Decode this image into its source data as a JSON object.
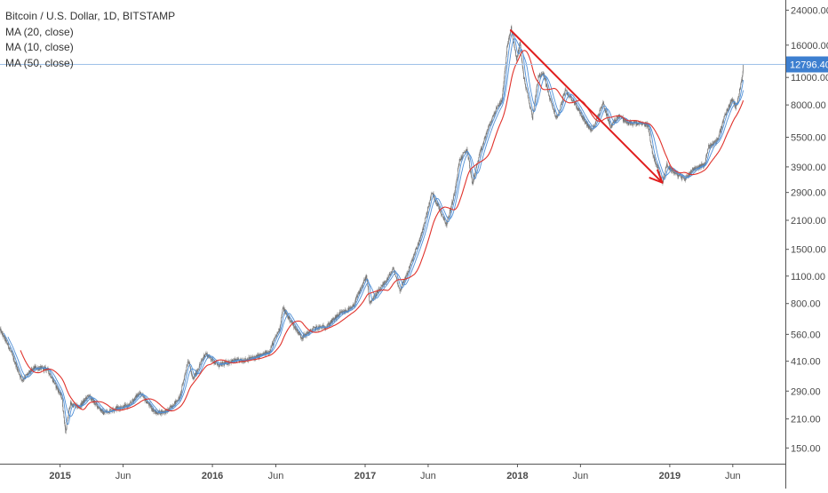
{
  "legend": {
    "symbol": "Bitcoin / U.S. Dollar, 1D, BITSTAMP",
    "ma20": "MA (20, close)",
    "ma10": "MA (10, close)",
    "ma50": "MA (50, close)"
  },
  "current_price_label": "12796.40",
  "colors": {
    "candles": "#8a8a8a",
    "ma_blue": "#4f8fd6",
    "ma_red": "#e0322b",
    "arrow": "#e01e1e",
    "price_line": "#9fc1e8",
    "price_tag": "#3d7fd0"
  },
  "chart_data": {
    "type": "line",
    "y_scale": "log",
    "ylim": [
      125,
      27000
    ],
    "grid": false,
    "y_ticks": [
      24000,
      16000,
      11000,
      8000,
      5500,
      3900,
      2900,
      2100,
      1500,
      1100,
      800,
      560,
      410,
      290,
      210,
      150
    ],
    "y_tick_labels": [
      "24000.00",
      "16000.00",
      "11000.00",
      "8000.00",
      "5500.00",
      "3900.00",
      "2900.00",
      "2100.00",
      "1500.00",
      "1100.00",
      "800.00",
      "560.00",
      "410.00",
      "290.00",
      "210.00",
      "150.00"
    ],
    "x_ticks": [
      "2015",
      "Jun",
      "2016",
      "Jun",
      "2017",
      "Jun",
      "2018",
      "Jun",
      "2019",
      "Jun"
    ],
    "x_tick_dates": [
      "2015-01-01",
      "2015-06-01",
      "2016-01-01",
      "2016-06-01",
      "2017-01-01",
      "2017-06-01",
      "2018-01-01",
      "2018-06-01",
      "2019-01-01",
      "2019-06-01"
    ],
    "x_range": [
      "2014-08-10",
      "2019-10-05"
    ],
    "current_price": 12796.4,
    "price_points": [
      [
        "2014-08-10",
        590
      ],
      [
        "2014-09-01",
        480
      ],
      [
        "2014-10-01",
        330
      ],
      [
        "2014-11-01",
        380
      ],
      [
        "2014-12-01",
        375
      ],
      [
        "2015-01-05",
        270
      ],
      [
        "2015-01-14",
        180
      ],
      [
        "2015-01-25",
        250
      ],
      [
        "2015-02-15",
        240
      ],
      [
        "2015-03-10",
        275
      ],
      [
        "2015-04-15",
        225
      ],
      [
        "2015-05-15",
        238
      ],
      [
        "2015-06-15",
        245
      ],
      [
        "2015-07-10",
        285
      ],
      [
        "2015-08-18",
        225
      ],
      [
        "2015-09-15",
        230
      ],
      [
        "2015-10-15",
        270
      ],
      [
        "2015-11-04",
        420
      ],
      [
        "2015-11-15",
        330
      ],
      [
        "2015-12-15",
        450
      ],
      [
        "2016-01-15",
        390
      ],
      [
        "2016-02-15",
        410
      ],
      [
        "2016-03-15",
        415
      ],
      [
        "2016-04-15",
        430
      ],
      [
        "2016-05-15",
        455
      ],
      [
        "2016-06-10",
        600
      ],
      [
        "2016-06-18",
        760
      ],
      [
        "2016-07-01",
        680
      ],
      [
        "2016-08-02",
        540
      ],
      [
        "2016-09-01",
        600
      ],
      [
        "2016-10-01",
        615
      ],
      [
        "2016-11-01",
        710
      ],
      [
        "2016-12-01",
        760
      ],
      [
        "2017-01-04",
        1100
      ],
      [
        "2017-01-12",
        810
      ],
      [
        "2017-02-15",
        1000
      ],
      [
        "2017-03-10",
        1200
      ],
      [
        "2017-03-25",
        930
      ],
      [
        "2017-04-15",
        1180
      ],
      [
        "2017-05-15",
        1750
      ],
      [
        "2017-06-10",
        2900
      ],
      [
        "2017-07-15",
        2000
      ],
      [
        "2017-08-01",
        2750
      ],
      [
        "2017-08-15",
        4200
      ],
      [
        "2017-09-02",
        4800
      ],
      [
        "2017-09-15",
        3200
      ],
      [
        "2017-10-01",
        4400
      ],
      [
        "2017-10-20",
        5900
      ],
      [
        "2017-11-08",
        7400
      ],
      [
        "2017-11-25",
        8500
      ],
      [
        "2017-12-07",
        15500
      ],
      [
        "2017-12-17",
        19500
      ],
      [
        "2017-12-30",
        13500
      ],
      [
        "2018-01-07",
        16500
      ],
      [
        "2018-01-16",
        11000
      ],
      [
        "2018-02-06",
        6900
      ],
      [
        "2018-02-20",
        11200
      ],
      [
        "2018-03-05",
        11400
      ],
      [
        "2018-03-20",
        8500
      ],
      [
        "2018-04-05",
        6800
      ],
      [
        "2018-04-25",
        9400
      ],
      [
        "2018-05-15",
        8400
      ],
      [
        "2018-06-10",
        6700
      ],
      [
        "2018-06-28",
        5900
      ],
      [
        "2018-07-25",
        8200
      ],
      [
        "2018-08-12",
        6200
      ],
      [
        "2018-09-01",
        7100
      ],
      [
        "2018-09-20",
        6500
      ],
      [
        "2018-10-15",
        6450
      ],
      [
        "2018-11-10",
        6350
      ],
      [
        "2018-11-20",
        4600
      ],
      [
        "2018-12-15",
        3250
      ],
      [
        "2018-12-24",
        4000
      ],
      [
        "2019-01-15",
        3600
      ],
      [
        "2019-02-07",
        3400
      ],
      [
        "2019-02-25",
        3800
      ],
      [
        "2019-03-25",
        4000
      ],
      [
        "2019-04-03",
        4900
      ],
      [
        "2019-04-25",
        5300
      ],
      [
        "2019-05-12",
        7000
      ],
      [
        "2019-05-30",
        8500
      ],
      [
        "2019-06-08",
        7800
      ],
      [
        "2019-06-16",
        9200
      ],
      [
        "2019-06-23",
        10800
      ],
      [
        "2019-06-26",
        12796.4
      ]
    ],
    "series": [
      {
        "name": "MA (20, close)",
        "color_key": "ma_blue"
      },
      {
        "name": "MA (10, close)",
        "color_key": "ma_blue"
      },
      {
        "name": "MA (50, close)",
        "color_key": "ma_red"
      }
    ],
    "annotations": [
      {
        "type": "arrow",
        "from": [
          "2017-12-16",
          19000
        ],
        "to": [
          "2018-12-14",
          3250
        ]
      }
    ]
  }
}
